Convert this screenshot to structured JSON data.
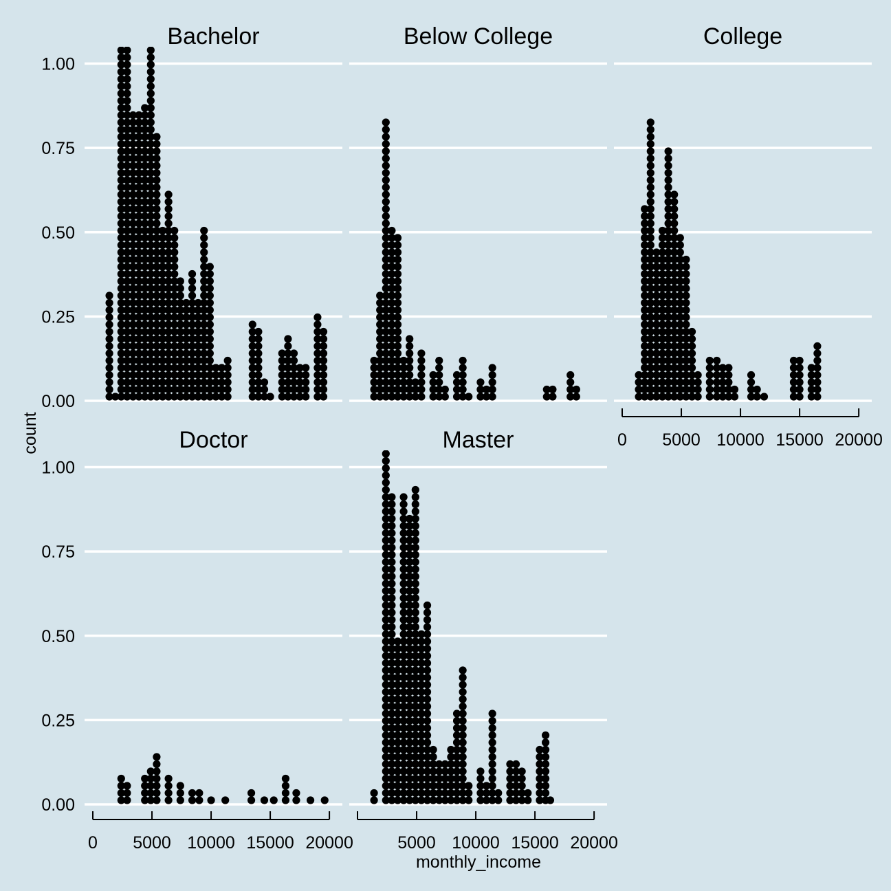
{
  "chart_data": {
    "type": "dotplot",
    "xlabel": "monthly_income",
    "ylabel": "count",
    "y_ticks": [
      "0.00",
      "0.25",
      "0.50",
      "0.75",
      "1.00"
    ],
    "y_tick_values": [
      0,
      0.25,
      0.5,
      0.75,
      1.0
    ],
    "ylim": [
      0,
      1.05
    ],
    "x_ticks": [
      "0",
      "5000",
      "10000",
      "15000",
      "20000"
    ],
    "x_tick_values": [
      0,
      5000,
      10000,
      15000,
      20000
    ],
    "xlim": [
      0,
      20400
    ],
    "background": "#d5e4eb",
    "dot_color": "#000000",
    "grid_color": "#ffffff",
    "facets": [
      {
        "title": "Bachelor",
        "bins": [
          [
            1400,
            0.31
          ],
          [
            1900,
            0.0
          ],
          [
            2400,
            1.05
          ],
          [
            2900,
            1.05
          ],
          [
            3400,
            0.86
          ],
          [
            3900,
            0.86
          ],
          [
            4400,
            0.88
          ],
          [
            4900,
            1.04
          ],
          [
            5400,
            0.79
          ],
          [
            5900,
            0.51
          ],
          [
            6400,
            0.61
          ],
          [
            6900,
            0.51
          ],
          [
            7400,
            0.36
          ],
          [
            7900,
            0.29
          ],
          [
            8400,
            0.38
          ],
          [
            8900,
            0.29
          ],
          [
            9400,
            0.51
          ],
          [
            9900,
            0.4
          ],
          [
            10400,
            0.11
          ],
          [
            10900,
            0.11
          ],
          [
            11400,
            0.13
          ],
          [
            13500,
            0.24
          ],
          [
            14000,
            0.22
          ],
          [
            14500,
            0.06
          ],
          [
            15000,
            0.02
          ],
          [
            16000,
            0.15
          ],
          [
            16500,
            0.19
          ],
          [
            17000,
            0.15
          ],
          [
            17500,
            0.11
          ],
          [
            18000,
            0.11
          ],
          [
            19000,
            0.26
          ],
          [
            19500,
            0.22
          ]
        ]
      },
      {
        "title": "Below College",
        "bins": [
          [
            1400,
            0.13
          ],
          [
            1900,
            0.31
          ],
          [
            2400,
            0.83
          ],
          [
            2900,
            0.51
          ],
          [
            3400,
            0.49
          ],
          [
            3900,
            0.13
          ],
          [
            4400,
            0.2
          ],
          [
            4900,
            0.06
          ],
          [
            5400,
            0.15
          ],
          [
            6400,
            0.08
          ],
          [
            6900,
            0.13
          ],
          [
            7400,
            0.04
          ],
          [
            8400,
            0.08
          ],
          [
            8900,
            0.13
          ],
          [
            9400,
            0.02
          ],
          [
            10400,
            0.06
          ],
          [
            10900,
            0.04
          ],
          [
            11400,
            0.1
          ],
          [
            16000,
            0.04
          ],
          [
            16500,
            0.04
          ],
          [
            18000,
            0.08
          ],
          [
            18500,
            0.04
          ]
        ]
      },
      {
        "title": "College",
        "bins": [
          [
            1400,
            0.08
          ],
          [
            1900,
            0.58
          ],
          [
            2400,
            0.83
          ],
          [
            2900,
            0.45
          ],
          [
            3400,
            0.51
          ],
          [
            3900,
            0.74
          ],
          [
            4400,
            0.63
          ],
          [
            4900,
            0.49
          ],
          [
            5400,
            0.42
          ],
          [
            5900,
            0.22
          ],
          [
            6400,
            0.08
          ],
          [
            7400,
            0.13
          ],
          [
            8000,
            0.13
          ],
          [
            8500,
            0.1
          ],
          [
            9000,
            0.11
          ],
          [
            9500,
            0.04
          ],
          [
            10900,
            0.08
          ],
          [
            11400,
            0.04
          ],
          [
            12000,
            0.02
          ],
          [
            14500,
            0.13
          ],
          [
            15000,
            0.13
          ],
          [
            16000,
            0.11
          ],
          [
            16500,
            0.17
          ]
        ]
      },
      {
        "title": "Doctor",
        "bins": [
          [
            2400,
            0.08
          ],
          [
            2900,
            0.06
          ],
          [
            4400,
            0.08
          ],
          [
            4900,
            0.11
          ],
          [
            5400,
            0.15
          ],
          [
            6400,
            0.08
          ],
          [
            7400,
            0.06
          ],
          [
            8400,
            0.04
          ],
          [
            9000,
            0.04
          ],
          [
            10000,
            0.02
          ],
          [
            11200,
            0.02
          ],
          [
            13400,
            0.04
          ],
          [
            14500,
            0.02
          ],
          [
            15300,
            0.02
          ],
          [
            16300,
            0.08
          ],
          [
            17200,
            0.04
          ],
          [
            18400,
            0.02
          ],
          [
            19600,
            0.02
          ]
        ]
      },
      {
        "title": "Master",
        "bins": [
          [
            1400,
            0.04
          ],
          [
            2400,
            1.05
          ],
          [
            2900,
            0.92
          ],
          [
            3400,
            0.49
          ],
          [
            3900,
            0.92
          ],
          [
            4400,
            0.86
          ],
          [
            4900,
            0.94
          ],
          [
            5400,
            0.51
          ],
          [
            5900,
            0.6
          ],
          [
            6400,
            0.18
          ],
          [
            6900,
            0.13
          ],
          [
            7400,
            0.13
          ],
          [
            7900,
            0.17
          ],
          [
            8400,
            0.27
          ],
          [
            8900,
            0.4
          ],
          [
            9400,
            0.06
          ],
          [
            10400,
            0.11
          ],
          [
            10900,
            0.06
          ],
          [
            11400,
            0.27
          ],
          [
            11900,
            0.04
          ],
          [
            12900,
            0.13
          ],
          [
            13400,
            0.13
          ],
          [
            13900,
            0.11
          ],
          [
            14400,
            0.04
          ],
          [
            15400,
            0.17
          ],
          [
            15900,
            0.22
          ],
          [
            16300,
            0.02
          ]
        ]
      }
    ]
  }
}
